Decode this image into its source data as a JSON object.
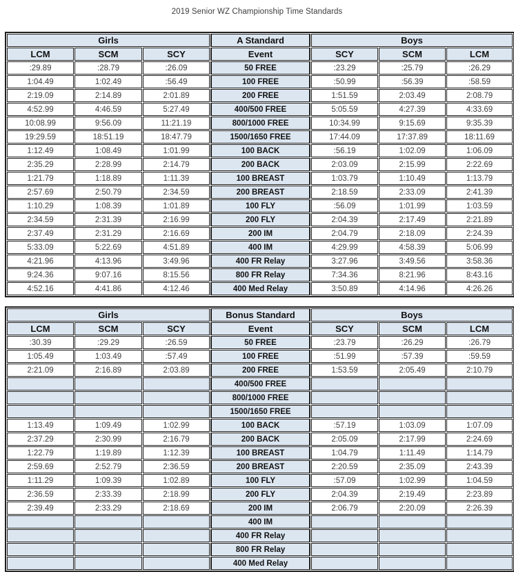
{
  "title": "2019 Senior WZ Championship Time Standards",
  "colors": {
    "header_bg": "#dce6f1",
    "border": "#1f1f1f",
    "value_text": "#404040"
  },
  "tables": [
    {
      "standard_label": "A Standard",
      "girls_label": "Girls",
      "boys_label": "Boys",
      "event_label": "Event",
      "girls_columns": [
        "LCM",
        "SCM",
        "SCY"
      ],
      "boys_columns": [
        "SCY",
        "SCM",
        "LCM"
      ],
      "rows": [
        {
          "event": "50 FREE",
          "girls": [
            ":29.89",
            ":28.79",
            ":26.09"
          ],
          "boys": [
            ":23.29",
            ":25.79",
            ":26.29"
          ]
        },
        {
          "event": "100 FREE",
          "girls": [
            "1:04.49",
            "1:02.49",
            ":56.49"
          ],
          "boys": [
            ":50.99",
            ":56.39",
            ":58.59"
          ]
        },
        {
          "event": "200 FREE",
          "girls": [
            "2:19.09",
            "2:14.89",
            "2:01.89"
          ],
          "boys": [
            "1:51.59",
            "2:03.49",
            "2:08.79"
          ]
        },
        {
          "event": "400/500 FREE",
          "girls": [
            "4:52.99",
            "4:46.59",
            "5:27.49"
          ],
          "boys": [
            "5:05.59",
            "4:27.39",
            "4:33.69"
          ]
        },
        {
          "event": "800/1000 FREE",
          "girls": [
            "10:08.99",
            "9:56.09",
            "11:21.19"
          ],
          "boys": [
            "10:34.99",
            "9:15.69",
            "9:35.39"
          ]
        },
        {
          "event": "1500/1650 FREE",
          "girls": [
            "19:29.59",
            "18:51.19",
            "18:47.79"
          ],
          "boys": [
            "17:44.09",
            "17:37.89",
            "18:11.69"
          ]
        },
        {
          "event": "100 BACK",
          "girls": [
            "1:12.49",
            "1:08.49",
            "1:01.99"
          ],
          "boys": [
            ":56.19",
            "1:02.09",
            "1:06.09"
          ]
        },
        {
          "event": "200 BACK",
          "girls": [
            "2:35.29",
            "2:28.99",
            "2:14.79"
          ],
          "boys": [
            "2:03.09",
            "2:15.99",
            "2:22.69"
          ]
        },
        {
          "event": "100 BREAST",
          "girls": [
            "1:21.79",
            "1:18.89",
            "1:11.39"
          ],
          "boys": [
            "1:03.79",
            "1:10.49",
            "1:13.79"
          ]
        },
        {
          "event": "200 BREAST",
          "girls": [
            "2:57.69",
            "2:50.79",
            "2:34.59"
          ],
          "boys": [
            "2:18.59",
            "2:33.09",
            "2:41.39"
          ]
        },
        {
          "event": "100 FLY",
          "girls": [
            "1:10.29",
            "1:08.39",
            "1:01.89"
          ],
          "boys": [
            ":56.09",
            "1:01.99",
            "1:03.59"
          ]
        },
        {
          "event": "200 FLY",
          "girls": [
            "2:34.59",
            "2:31.39",
            "2:16.99"
          ],
          "boys": [
            "2:04.39",
            "2:17.49",
            "2:21.89"
          ]
        },
        {
          "event": "200 IM",
          "girls": [
            "2:37.49",
            "2:31.29",
            "2:16.69"
          ],
          "boys": [
            "2:04.79",
            "2:18.09",
            "2:24.39"
          ]
        },
        {
          "event": "400 IM",
          "girls": [
            "5:33.09",
            "5:22.69",
            "4:51.89"
          ],
          "boys": [
            "4:29.99",
            "4:58.39",
            "5:06.99"
          ]
        },
        {
          "event": "400 FR Relay",
          "girls": [
            "4:21.96",
            "4:13.96",
            "3:49.96"
          ],
          "boys": [
            "3:27.96",
            "3:49.56",
            "3:58.36"
          ]
        },
        {
          "event": "800 FR Relay",
          "girls": [
            "9:24.36",
            "9:07.16",
            "8:15.56"
          ],
          "boys": [
            "7:34.36",
            "8:21.96",
            "8:43.16"
          ]
        },
        {
          "event": "400 Med Relay",
          "girls": [
            "4:52.16",
            "4:41.86",
            "4:12.46"
          ],
          "boys": [
            "3:50.89",
            "4:14.96",
            "4:26.26"
          ]
        }
      ]
    },
    {
      "standard_label": "Bonus Standard",
      "girls_label": "Girls",
      "boys_label": "Boys",
      "event_label": "Event",
      "girls_columns": [
        "LCM",
        "SCM",
        "SCY"
      ],
      "boys_columns": [
        "SCY",
        "SCM",
        "LCM"
      ],
      "rows": [
        {
          "event": "50 FREE",
          "girls": [
            ":30.39",
            ":29.29",
            ":26.59"
          ],
          "boys": [
            ":23.79",
            ":26.29",
            ":26.79"
          ]
        },
        {
          "event": "100 FREE",
          "girls": [
            "1:05.49",
            "1:03.49",
            ":57.49"
          ],
          "boys": [
            ":51.99",
            ":57.39",
            ":59.59"
          ]
        },
        {
          "event": "200 FREE",
          "girls": [
            "2:21.09",
            "2:16.89",
            "2:03.89"
          ],
          "boys": [
            "1:53.59",
            "2:05.49",
            "2:10.79"
          ]
        },
        {
          "event": "400/500 FREE",
          "girls": [
            "",
            "",
            ""
          ],
          "boys": [
            "",
            "",
            ""
          ]
        },
        {
          "event": "800/1000 FREE",
          "girls": [
            "",
            "",
            ""
          ],
          "boys": [
            "",
            "",
            ""
          ]
        },
        {
          "event": "1500/1650 FREE",
          "girls": [
            "",
            "",
            ""
          ],
          "boys": [
            "",
            "",
            ""
          ]
        },
        {
          "event": "100 BACK",
          "girls": [
            "1:13.49",
            "1:09.49",
            "1:02.99"
          ],
          "boys": [
            ":57.19",
            "1:03.09",
            "1:07.09"
          ]
        },
        {
          "event": "200 BACK",
          "girls": [
            "2:37.29",
            "2:30.99",
            "2:16.79"
          ],
          "boys": [
            "2:05.09",
            "2:17.99",
            "2:24.69"
          ]
        },
        {
          "event": "100 BREAST",
          "girls": [
            "1:22.79",
            "1:19.89",
            "1:12.39"
          ],
          "boys": [
            "1:04.79",
            "1:11.49",
            "1:14.79"
          ]
        },
        {
          "event": "200 BREAST",
          "girls": [
            "2:59.69",
            "2:52.79",
            "2:36.59"
          ],
          "boys": [
            "2:20.59",
            "2:35.09",
            "2:43.39"
          ]
        },
        {
          "event": "100 FLY",
          "girls": [
            "1:11.29",
            "1:09.39",
            "1:02.89"
          ],
          "boys": [
            ":57.09",
            "1:02.99",
            "1:04.59"
          ]
        },
        {
          "event": "200 FLY",
          "girls": [
            "2:36.59",
            "2:33.39",
            "2:18.99"
          ],
          "boys": [
            "2:04.39",
            "2:19.49",
            "2:23.89"
          ]
        },
        {
          "event": "200 IM",
          "girls": [
            "2:39.49",
            "2:33.29",
            "2:18.69"
          ],
          "boys": [
            "2:06.79",
            "2:20.09",
            "2:26.39"
          ]
        },
        {
          "event": "400 IM",
          "girls": [
            "",
            "",
            ""
          ],
          "boys": [
            "",
            "",
            ""
          ]
        },
        {
          "event": "400 FR Relay",
          "girls": [
            "",
            "",
            ""
          ],
          "boys": [
            "",
            "",
            ""
          ]
        },
        {
          "event": "800 FR Relay",
          "girls": [
            "",
            "",
            ""
          ],
          "boys": [
            "",
            "",
            ""
          ]
        },
        {
          "event": "400 Med Relay",
          "girls": [
            "",
            "",
            ""
          ],
          "boys": [
            "",
            "",
            ""
          ]
        }
      ]
    }
  ]
}
